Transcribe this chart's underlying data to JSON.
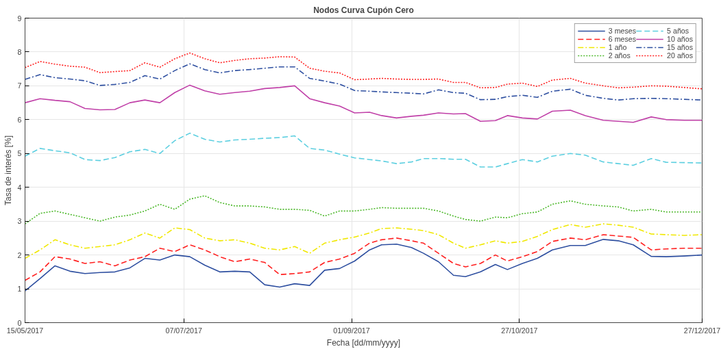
{
  "chart_data": {
    "type": "line",
    "title": "Nodos Curva Cupón Cero",
    "xlabel": "Fecha [dd/mm/yyyy]",
    "ylabel": "Tasa de interés [%]",
    "x": [
      "2017-05-15",
      "2017-05-20",
      "2017-05-25",
      "2017-05-30",
      "2017-06-04",
      "2017-06-09",
      "2017-06-14",
      "2017-06-19",
      "2017-06-24",
      "2017-06-29",
      "2017-07-04",
      "2017-07-09",
      "2017-07-14",
      "2017-07-19",
      "2017-07-24",
      "2017-07-29",
      "2017-08-03",
      "2017-08-08",
      "2017-08-13",
      "2017-08-18",
      "2017-08-23",
      "2017-08-28",
      "2017-09-02",
      "2017-09-07",
      "2017-09-11",
      "2017-09-16",
      "2017-09-21",
      "2017-09-25",
      "2017-09-30",
      "2017-10-05",
      "2017-10-09",
      "2017-10-14",
      "2017-10-19",
      "2017-10-23",
      "2017-10-28",
      "2017-11-02",
      "2017-11-07",
      "2017-11-13",
      "2017-11-18",
      "2017-11-24",
      "2017-11-29",
      "2017-12-04",
      "2017-12-10",
      "2017-12-15",
      "2017-12-21",
      "2017-12-27"
    ],
    "xlim": [
      "2017-05-15",
      "2017-12-27"
    ],
    "xticks": [
      {
        "value": "2017-05-15",
        "label": "15/05/2017"
      },
      {
        "value": "2017-07-07",
        "label": "07/07/2017"
      },
      {
        "value": "2017-09-01",
        "label": "01/09/2017"
      },
      {
        "value": "2017-10-27",
        "label": "27/10/2017"
      },
      {
        "value": "2017-12-27",
        "label": "27/12/2017"
      }
    ],
    "ylim": [
      0,
      9
    ],
    "yticks": [
      0,
      1,
      2,
      3,
      4,
      5,
      6,
      7,
      8,
      9
    ],
    "grid": true,
    "legend": "top right",
    "series": [
      {
        "name": "3 meses",
        "color": "#2e4fa0",
        "line_style": "solid",
        "values": [
          0.94,
          1.3,
          1.68,
          1.52,
          1.45,
          1.48,
          1.5,
          1.62,
          1.9,
          1.85,
          2.0,
          1.95,
          1.7,
          1.5,
          1.52,
          1.5,
          1.12,
          1.05,
          1.15,
          1.1,
          1.55,
          1.6,
          1.82,
          2.15,
          2.3,
          2.32,
          2.22,
          2.05,
          1.8,
          1.4,
          1.36,
          1.5,
          1.72,
          1.57,
          1.75,
          1.9,
          2.15,
          2.28,
          2.28,
          2.46,
          2.42,
          2.3,
          1.96,
          1.95,
          1.97,
          2.0
        ]
      },
      {
        "name": "6 meses",
        "color": "#ff2020",
        "line_style": "dashed",
        "values": [
          1.25,
          1.5,
          1.95,
          1.88,
          1.75,
          1.8,
          1.68,
          1.85,
          1.95,
          2.2,
          2.1,
          2.3,
          2.15,
          1.95,
          1.8,
          1.88,
          1.78,
          1.42,
          1.45,
          1.5,
          1.78,
          1.88,
          2.05,
          2.35,
          2.45,
          2.5,
          2.42,
          2.35,
          2.05,
          1.75,
          1.65,
          1.75,
          2.0,
          1.82,
          1.95,
          2.1,
          2.4,
          2.5,
          2.45,
          2.6,
          2.56,
          2.52,
          2.15,
          2.18,
          2.2,
          2.2
        ]
      },
      {
        "name": "1 año",
        "color": "#f0e800",
        "line_style": "dashdot",
        "values": [
          1.9,
          2.15,
          2.45,
          2.3,
          2.2,
          2.25,
          2.3,
          2.45,
          2.65,
          2.5,
          2.8,
          2.75,
          2.5,
          2.42,
          2.45,
          2.35,
          2.2,
          2.15,
          2.25,
          2.05,
          2.35,
          2.45,
          2.53,
          2.65,
          2.78,
          2.8,
          2.76,
          2.72,
          2.6,
          2.35,
          2.2,
          2.3,
          2.42,
          2.35,
          2.4,
          2.55,
          2.75,
          2.9,
          2.82,
          2.92,
          2.88,
          2.82,
          2.62,
          2.6,
          2.58,
          2.6
        ]
      },
      {
        "name": "2 años",
        "color": "#4cb82a",
        "line_style": "dotted",
        "values": [
          2.92,
          3.23,
          3.3,
          3.2,
          3.1,
          3.0,
          3.12,
          3.18,
          3.3,
          3.5,
          3.35,
          3.65,
          3.75,
          3.55,
          3.45,
          3.45,
          3.42,
          3.35,
          3.35,
          3.32,
          3.15,
          3.3,
          3.3,
          3.35,
          3.4,
          3.38,
          3.38,
          3.38,
          3.3,
          3.15,
          3.05,
          3.0,
          3.12,
          3.1,
          3.22,
          3.27,
          3.5,
          3.6,
          3.5,
          3.45,
          3.42,
          3.3,
          3.35,
          3.27,
          3.27,
          3.27
        ]
      },
      {
        "name": "5 años",
        "color": "#5ccfe0",
        "line_style": "dashed",
        "values": [
          4.92,
          5.15,
          5.08,
          5.02,
          4.82,
          4.79,
          4.88,
          5.05,
          5.12,
          5.0,
          5.38,
          5.6,
          5.42,
          5.34,
          5.4,
          5.42,
          5.45,
          5.47,
          5.52,
          5.15,
          5.1,
          4.98,
          4.87,
          4.82,
          4.78,
          4.7,
          4.75,
          4.85,
          4.85,
          4.83,
          4.83,
          4.6,
          4.6,
          4.7,
          4.82,
          4.75,
          4.92,
          5.0,
          4.95,
          4.75,
          4.7,
          4.65,
          4.85,
          4.74,
          4.73,
          4.72
        ]
      },
      {
        "name": "10 años",
        "color": "#c040a8",
        "line_style": "solid",
        "values": [
          6.5,
          6.62,
          6.57,
          6.53,
          6.33,
          6.29,
          6.3,
          6.5,
          6.58,
          6.5,
          6.8,
          7.02,
          6.85,
          6.75,
          6.8,
          6.84,
          6.92,
          6.95,
          7.0,
          6.62,
          6.5,
          6.4,
          6.2,
          6.22,
          6.12,
          6.05,
          6.1,
          6.13,
          6.2,
          6.17,
          6.18,
          5.95,
          5.97,
          6.12,
          6.05,
          6.02,
          6.25,
          6.28,
          6.12,
          5.98,
          5.95,
          5.92,
          6.08,
          6.0,
          5.98,
          5.98
        ]
      },
      {
        "name": "15 años",
        "color": "#2e4fa0",
        "line_style": "dashdot",
        "values": [
          7.19,
          7.33,
          7.24,
          7.2,
          7.15,
          7.01,
          7.04,
          7.1,
          7.3,
          7.2,
          7.45,
          7.65,
          7.48,
          7.38,
          7.45,
          7.48,
          7.52,
          7.56,
          7.56,
          7.22,
          7.14,
          7.05,
          6.86,
          6.84,
          6.82,
          6.8,
          6.78,
          6.76,
          6.88,
          6.8,
          6.78,
          6.59,
          6.6,
          6.68,
          6.72,
          6.66,
          6.84,
          6.9,
          6.72,
          6.63,
          6.58,
          6.62,
          6.63,
          6.62,
          6.6,
          6.58
        ]
      },
      {
        "name": "20 años",
        "color": "#ff2020",
        "line_style": "dotted",
        "values": [
          7.54,
          7.72,
          7.64,
          7.58,
          7.55,
          7.39,
          7.42,
          7.45,
          7.68,
          7.55,
          7.8,
          7.97,
          7.8,
          7.68,
          7.75,
          7.8,
          7.82,
          7.86,
          7.85,
          7.52,
          7.43,
          7.38,
          7.18,
          7.2,
          7.22,
          7.2,
          7.19,
          7.19,
          7.2,
          7.1,
          7.1,
          6.94,
          6.95,
          7.05,
          7.08,
          6.98,
          7.17,
          7.22,
          7.08,
          7.0,
          6.94,
          6.96,
          7.0,
          6.99,
          6.95,
          6.91
        ]
      }
    ]
  }
}
